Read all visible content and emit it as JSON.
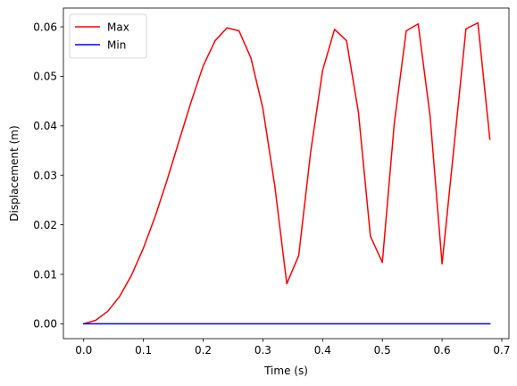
{
  "chart_data": {
    "type": "line",
    "title": "",
    "xlabel": "Time (s)",
    "ylabel": "Displacement (m)",
    "xlim": [
      -0.034,
      0.712
    ],
    "ylim": [
      -0.003,
      0.0638
    ],
    "xticks": [
      0.0,
      0.1,
      0.2,
      0.3,
      0.4,
      0.5,
      0.6,
      0.7
    ],
    "xtick_labels": [
      "0.0",
      "0.1",
      "0.2",
      "0.3",
      "0.4",
      "0.5",
      "0.6",
      "0.7"
    ],
    "yticks": [
      0.0,
      0.01,
      0.02,
      0.03,
      0.04,
      0.05,
      0.06
    ],
    "ytick_labels": [
      "0.00",
      "0.01",
      "0.02",
      "0.03",
      "0.04",
      "0.05",
      "0.06"
    ],
    "grid": false,
    "legend_position": "upper-left",
    "series": [
      {
        "name": "Max",
        "color": "#ff0000",
        "x": [
          0.0,
          0.02,
          0.04,
          0.06,
          0.08,
          0.1,
          0.12,
          0.14,
          0.16,
          0.18,
          0.2,
          0.22,
          0.24,
          0.26,
          0.28,
          0.3,
          0.32,
          0.34,
          0.36,
          0.38,
          0.4,
          0.42,
          0.44,
          0.46,
          0.48,
          0.5,
          0.52,
          0.54,
          0.56,
          0.58,
          0.6,
          0.62,
          0.64,
          0.66,
          0.68
        ],
        "y": [
          0.0,
          0.0007,
          0.0025,
          0.0055,
          0.0098,
          0.0153,
          0.0218,
          0.0292,
          0.0371,
          0.0449,
          0.0521,
          0.0572,
          0.0598,
          0.0592,
          0.0537,
          0.0435,
          0.0278,
          0.0081,
          0.0138,
          0.0347,
          0.0512,
          0.0595,
          0.0572,
          0.0427,
          0.0177,
          0.0124,
          0.0405,
          0.0592,
          0.0606,
          0.0419,
          0.0121,
          0.0358,
          0.0596,
          0.0608,
          0.0373
        ]
      },
      {
        "name": "Min",
        "color": "#0000ff",
        "x": [
          0.0,
          0.02,
          0.04,
          0.06,
          0.08,
          0.1,
          0.12,
          0.14,
          0.16,
          0.18,
          0.2,
          0.22,
          0.24,
          0.26,
          0.28,
          0.3,
          0.32,
          0.34,
          0.36,
          0.38,
          0.4,
          0.42,
          0.44,
          0.46,
          0.48,
          0.5,
          0.52,
          0.54,
          0.56,
          0.58,
          0.6,
          0.62,
          0.64,
          0.66,
          0.68
        ],
        "y": [
          0.0,
          0.0,
          0.0,
          0.0,
          0.0,
          0.0,
          0.0,
          0.0,
          0.0,
          0.0,
          0.0,
          0.0,
          0.0,
          0.0,
          0.0,
          0.0,
          0.0,
          0.0,
          0.0,
          0.0,
          0.0,
          0.0,
          0.0,
          0.0,
          0.0,
          0.0,
          0.0,
          0.0,
          0.0,
          0.0,
          0.0,
          0.0,
          0.0,
          0.0,
          0.0
        ]
      }
    ]
  }
}
